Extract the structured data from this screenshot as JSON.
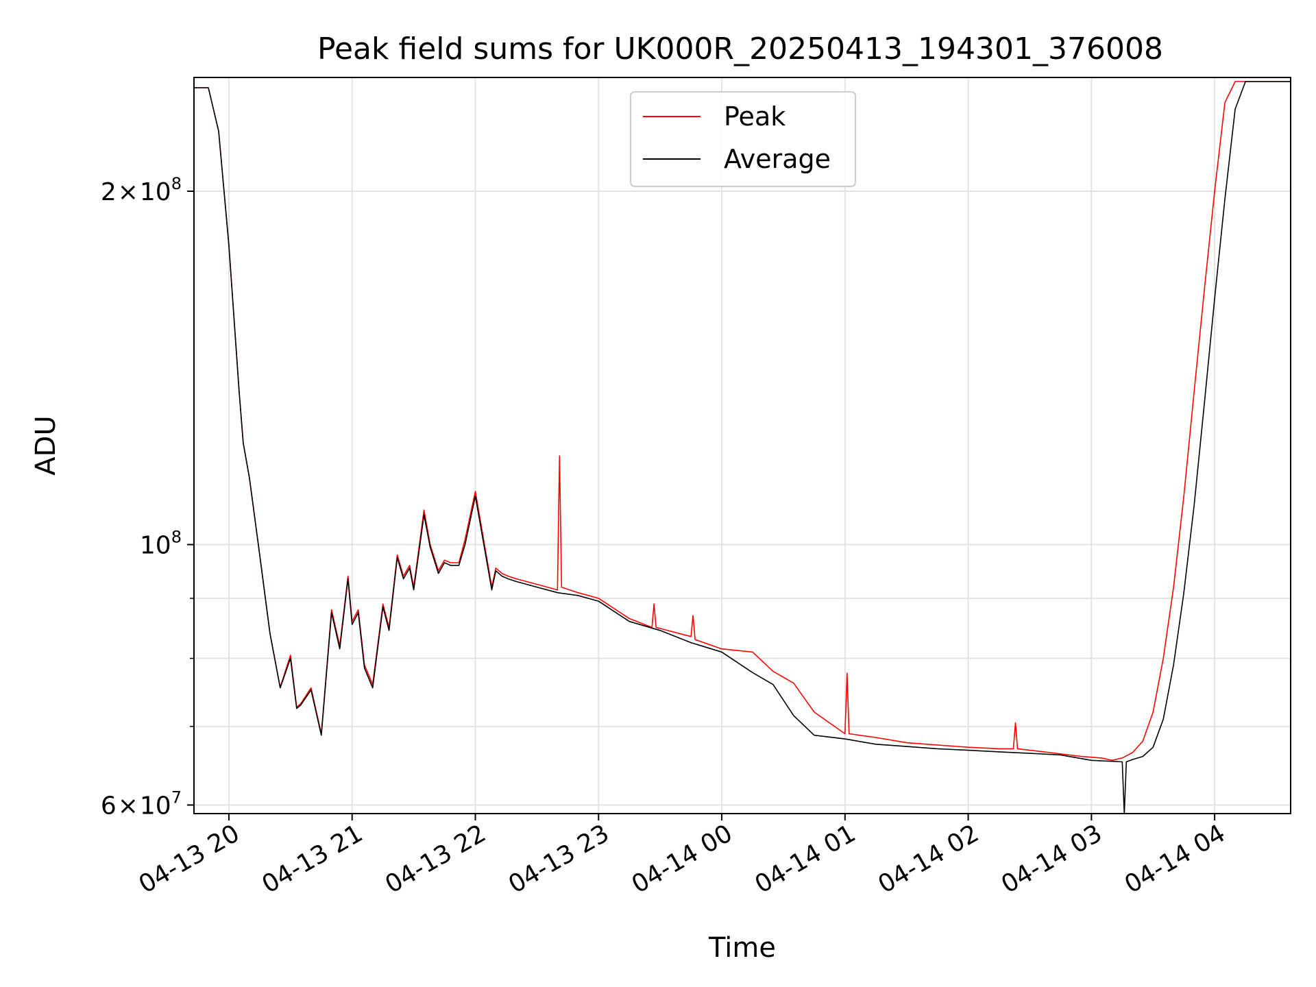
{
  "chart_data": {
    "type": "line",
    "title": "Peak field sums for UK000R_20250413_194301_376008",
    "xlabel": "Time",
    "ylabel": "ADU",
    "yscale": "log",
    "ylim": [
      59000000,
      250000000
    ],
    "xlim": [
      "2025-04-13 19:43",
      "2025-04-14 04:37"
    ],
    "grid": true,
    "legend_position": "top-center",
    "x_ticks": [
      "04-13 20",
      "04-13 21",
      "04-13 22",
      "04-13 23",
      "04-14 00",
      "04-14 01",
      "04-14 02",
      "04-14 03",
      "04-14 04"
    ],
    "y_tick_labels": [
      {
        "value": 200000000,
        "mantissa": "2",
        "times": "×",
        "base": "10",
        "exp": "8"
      },
      {
        "value": 100000000,
        "mantissa": "",
        "times": "",
        "base": "10",
        "exp": "8"
      },
      {
        "value": 60000000,
        "mantissa": "6",
        "times": "×",
        "base": "10",
        "exp": "7"
      }
    ],
    "y_minor_ticks": [
      70000000,
      80000000,
      90000000
    ],
    "series": [
      {
        "name": "Peak",
        "color": "#ff0000",
        "x": [
          "2025-04-13 19:43",
          "2025-04-13 19:50",
          "2025-04-13 19:55",
          "2025-04-13 20:00",
          "2025-04-13 20:05",
          "2025-04-13 20:07",
          "2025-04-13 20:10",
          "2025-04-13 20:15",
          "2025-04-13 20:20",
          "2025-04-13 20:25",
          "2025-04-13 20:30",
          "2025-04-13 20:33",
          "2025-04-13 20:35",
          "2025-04-13 20:40",
          "2025-04-13 20:45",
          "2025-04-13 20:50",
          "2025-04-13 20:54",
          "2025-04-13 20:58",
          "2025-04-13 21:00",
          "2025-04-13 21:03",
          "2025-04-13 21:06",
          "2025-04-13 21:10",
          "2025-04-13 21:15",
          "2025-04-13 21:18",
          "2025-04-13 21:22",
          "2025-04-13 21:25",
          "2025-04-13 21:28",
          "2025-04-13 21:30",
          "2025-04-13 21:35",
          "2025-04-13 21:38",
          "2025-04-13 21:42",
          "2025-04-13 21:45",
          "2025-04-13 21:48",
          "2025-04-13 21:52",
          "2025-04-13 21:55",
          "2025-04-13 22:00",
          "2025-04-13 22:08",
          "2025-04-13 22:10",
          "2025-04-13 22:13",
          "2025-04-13 22:16",
          "2025-04-13 22:20",
          "2025-04-13 22:30",
          "2025-04-13 22:40",
          "2025-04-13 22:41",
          "2025-04-13 22:42",
          "2025-04-13 22:50",
          "2025-04-13 23:00",
          "2025-04-13 23:15",
          "2025-04-13 23:26",
          "2025-04-13 23:27",
          "2025-04-13 23:28",
          "2025-04-13 23:45",
          "2025-04-13 23:46",
          "2025-04-13 23:47",
          "2025-04-14 00:00",
          "2025-04-14 00:15",
          "2025-04-14 00:25",
          "2025-04-14 00:35",
          "2025-04-14 00:45",
          "2025-04-14 01:00",
          "2025-04-14 01:01",
          "2025-04-14 01:02",
          "2025-04-14 01:15",
          "2025-04-14 01:30",
          "2025-04-14 01:45",
          "2025-04-14 02:00",
          "2025-04-14 02:15",
          "2025-04-14 02:22",
          "2025-04-14 02:23",
          "2025-04-14 02:24",
          "2025-04-14 02:40",
          "2025-04-14 02:55",
          "2025-04-14 03:05",
          "2025-04-14 03:10",
          "2025-04-14 03:15",
          "2025-04-14 03:20",
          "2025-04-14 03:25",
          "2025-04-14 03:30",
          "2025-04-14 03:35",
          "2025-04-14 03:40",
          "2025-04-14 03:45",
          "2025-04-14 03:50",
          "2025-04-14 03:55",
          "2025-04-14 04:00",
          "2025-04-14 04:05",
          "2025-04-14 04:10",
          "2025-04-14 04:15",
          "2025-04-14 04:20",
          "2025-04-14 04:25",
          "2025-04-14 04:30",
          "2025-04-14 04:37"
        ],
        "values": [
          245000000,
          245000000,
          225000000,
          180000000,
          135000000,
          122000000,
          114000000,
          98000000,
          84000000,
          75600000,
          80500000,
          72700000,
          73200000,
          75500000,
          69000000,
          88000000,
          82000000,
          94000000,
          86000000,
          88000000,
          79000000,
          76000000,
          89000000,
          85000000,
          98000000,
          94000000,
          96000000,
          92000000,
          107000000,
          100000000,
          95000000,
          97000000,
          96500000,
          96500000,
          101000000,
          111000000,
          92000000,
          95500000,
          94500000,
          94000000,
          93500000,
          92500000,
          91500000,
          119000000,
          92000000,
          91000000,
          90000000,
          86500000,
          85000000,
          89000000,
          85000000,
          83500000,
          87000000,
          83000000,
          81500000,
          81000000,
          78000000,
          76200000,
          72000000,
          69000000,
          77700000,
          69000000,
          68500000,
          67800000,
          67500000,
          67200000,
          67000000,
          67000000,
          70500000,
          67000000,
          66500000,
          66000000,
          65800000,
          65500000,
          65800000,
          66500000,
          68000000,
          72000000,
          80000000,
          92000000,
          110000000,
          135000000,
          165000000,
          200000000,
          238000000,
          248000000,
          248000000,
          248000000,
          248000000,
          248000000,
          248000000
        ]
      },
      {
        "name": "Average",
        "color": "#000000",
        "x": [
          "2025-04-13 19:43",
          "2025-04-13 19:50",
          "2025-04-13 19:55",
          "2025-04-13 20:00",
          "2025-04-13 20:05",
          "2025-04-13 20:07",
          "2025-04-13 20:10",
          "2025-04-13 20:15",
          "2025-04-13 20:20",
          "2025-04-13 20:25",
          "2025-04-13 20:30",
          "2025-04-13 20:33",
          "2025-04-13 20:35",
          "2025-04-13 20:40",
          "2025-04-13 20:45",
          "2025-04-13 20:50",
          "2025-04-13 20:54",
          "2025-04-13 20:58",
          "2025-04-13 21:00",
          "2025-04-13 21:03",
          "2025-04-13 21:06",
          "2025-04-13 21:10",
          "2025-04-13 21:15",
          "2025-04-13 21:18",
          "2025-04-13 21:22",
          "2025-04-13 21:25",
          "2025-04-13 21:28",
          "2025-04-13 21:30",
          "2025-04-13 21:35",
          "2025-04-13 21:38",
          "2025-04-13 21:42",
          "2025-04-13 21:45",
          "2025-04-13 21:48",
          "2025-04-13 21:52",
          "2025-04-13 21:55",
          "2025-04-13 22:00",
          "2025-04-13 22:08",
          "2025-04-13 22:10",
          "2025-04-13 22:13",
          "2025-04-13 22:16",
          "2025-04-13 22:20",
          "2025-04-13 22:30",
          "2025-04-13 22:40",
          "2025-04-13 22:50",
          "2025-04-13 23:00",
          "2025-04-13 23:15",
          "2025-04-13 23:30",
          "2025-04-13 23:45",
          "2025-04-14 00:00",
          "2025-04-14 00:15",
          "2025-04-14 00:25",
          "2025-04-14 00:35",
          "2025-04-14 00:45",
          "2025-04-14 01:00",
          "2025-04-14 01:15",
          "2025-04-14 01:30",
          "2025-04-14 01:45",
          "2025-04-14 02:00",
          "2025-04-14 02:15",
          "2025-04-14 02:30",
          "2025-04-14 02:45",
          "2025-04-14 03:00",
          "2025-04-14 03:15",
          "2025-04-14 03:16",
          "2025-04-14 03:17",
          "2025-04-14 03:20",
          "2025-04-14 03:25",
          "2025-04-14 03:30",
          "2025-04-14 03:35",
          "2025-04-14 03:40",
          "2025-04-14 03:45",
          "2025-04-14 03:50",
          "2025-04-14 03:55",
          "2025-04-14 04:00",
          "2025-04-14 04:05",
          "2025-04-14 04:10",
          "2025-04-14 04:15",
          "2025-04-14 04:20",
          "2025-04-14 04:25",
          "2025-04-14 04:30",
          "2025-04-14 04:37"
        ],
        "values": [
          245000000,
          245000000,
          225000000,
          180000000,
          135000000,
          122000000,
          114000000,
          98000000,
          84000000,
          75500000,
          80000000,
          72500000,
          73000000,
          75200000,
          68800000,
          87500000,
          81500000,
          93500000,
          85500000,
          87500000,
          78500000,
          75500000,
          88500000,
          84500000,
          97500000,
          93500000,
          95500000,
          91500000,
          106000000,
          99500000,
          94500000,
          96500000,
          96000000,
          96000000,
          100000000,
          110000000,
          91500000,
          95000000,
          94000000,
          93500000,
          93000000,
          92000000,
          91000000,
          90500000,
          89500000,
          86000000,
          84500000,
          82500000,
          81000000,
          77800000,
          76000000,
          71500000,
          68800000,
          68300000,
          67600000,
          67300000,
          67000000,
          66800000,
          66600000,
          66400000,
          66200000,
          65500000,
          65300000,
          59000000,
          65300000,
          65600000,
          66000000,
          67200000,
          71000000,
          79000000,
          91000000,
          108000000,
          132000000,
          162000000,
          197000000,
          235000000,
          248000000,
          248000000,
          248000000,
          248000000,
          248000000
        ]
      }
    ]
  }
}
